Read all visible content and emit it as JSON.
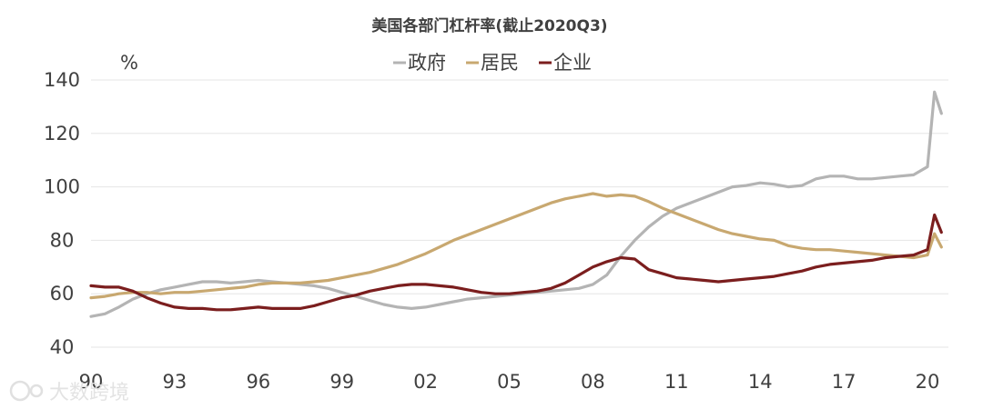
{
  "chart_data": {
    "type": "line",
    "title": "美国各部门杠杆率(截止2020Q3)",
    "unit": "%",
    "ylim": [
      40,
      140
    ],
    "yticks": [
      40,
      60,
      80,
      100,
      120,
      140
    ],
    "xlim": [
      1990,
      2020.75
    ],
    "xticks": [
      {
        "value": 1990,
        "label": "90"
      },
      {
        "value": 1993,
        "label": "93"
      },
      {
        "value": 1996,
        "label": "96"
      },
      {
        "value": 1999,
        "label": "99"
      },
      {
        "value": 2002,
        "label": "02"
      },
      {
        "value": 2005,
        "label": "05"
      },
      {
        "value": 2008,
        "label": "08"
      },
      {
        "value": 2011,
        "label": "11"
      },
      {
        "value": 2014,
        "label": "14"
      },
      {
        "value": 2017,
        "label": "17"
      },
      {
        "value": 2020,
        "label": "20"
      }
    ],
    "grid": "horizontal",
    "legend_position": "top",
    "series": [
      {
        "name": "政府",
        "color": "#b4b4b4",
        "points": [
          [
            1990.0,
            51.5
          ],
          [
            1990.5,
            52.5
          ],
          [
            1991.0,
            55.0
          ],
          [
            1991.5,
            58.0
          ],
          [
            1992.0,
            60.0
          ],
          [
            1992.5,
            61.5
          ],
          [
            1993.0,
            62.5
          ],
          [
            1993.5,
            63.5
          ],
          [
            1994.0,
            64.5
          ],
          [
            1994.5,
            64.5
          ],
          [
            1995.0,
            64.0
          ],
          [
            1995.5,
            64.5
          ],
          [
            1996.0,
            65.0
          ],
          [
            1996.5,
            64.5
          ],
          [
            1997.0,
            64.0
          ],
          [
            1997.5,
            63.5
          ],
          [
            1998.0,
            63.0
          ],
          [
            1998.5,
            62.0
          ],
          [
            1999.0,
            60.5
          ],
          [
            1999.5,
            59.0
          ],
          [
            2000.0,
            57.5
          ],
          [
            2000.5,
            56.0
          ],
          [
            2001.0,
            55.0
          ],
          [
            2001.5,
            54.5
          ],
          [
            2002.0,
            55.0
          ],
          [
            2002.5,
            56.0
          ],
          [
            2003.0,
            57.0
          ],
          [
            2003.5,
            58.0
          ],
          [
            2004.0,
            58.5
          ],
          [
            2004.5,
            59.0
          ],
          [
            2005.0,
            59.5
          ],
          [
            2005.5,
            60.0
          ],
          [
            2006.0,
            60.5
          ],
          [
            2006.5,
            61.0
          ],
          [
            2007.0,
            61.5
          ],
          [
            2007.5,
            62.0
          ],
          [
            2008.0,
            63.5
          ],
          [
            2008.5,
            67.0
          ],
          [
            2009.0,
            74.0
          ],
          [
            2009.5,
            80.0
          ],
          [
            2010.0,
            85.0
          ],
          [
            2010.5,
            89.0
          ],
          [
            2011.0,
            92.0
          ],
          [
            2011.5,
            94.0
          ],
          [
            2012.0,
            96.0
          ],
          [
            2012.5,
            98.0
          ],
          [
            2013.0,
            100.0
          ],
          [
            2013.5,
            100.5
          ],
          [
            2014.0,
            101.5
          ],
          [
            2014.5,
            101.0
          ],
          [
            2015.0,
            100.0
          ],
          [
            2015.5,
            100.5
          ],
          [
            2016.0,
            103.0
          ],
          [
            2016.5,
            104.0
          ],
          [
            2017.0,
            104.0
          ],
          [
            2017.5,
            103.0
          ],
          [
            2018.0,
            103.0
          ],
          [
            2018.5,
            103.5
          ],
          [
            2019.0,
            104.0
          ],
          [
            2019.5,
            104.5
          ],
          [
            2020.0,
            107.5
          ],
          [
            2020.25,
            135.5
          ],
          [
            2020.5,
            127.5
          ]
        ]
      },
      {
        "name": "居民",
        "color": "#c8a870",
        "points": [
          [
            1990.0,
            58.5
          ],
          [
            1990.5,
            59.0
          ],
          [
            1991.0,
            60.0
          ],
          [
            1991.5,
            60.5
          ],
          [
            1992.0,
            60.5
          ],
          [
            1992.5,
            60.0
          ],
          [
            1993.0,
            60.5
          ],
          [
            1993.5,
            60.5
          ],
          [
            1994.0,
            61.0
          ],
          [
            1994.5,
            61.5
          ],
          [
            1995.0,
            62.0
          ],
          [
            1995.5,
            62.5
          ],
          [
            1996.0,
            63.5
          ],
          [
            1996.5,
            64.0
          ],
          [
            1997.0,
            64.0
          ],
          [
            1997.5,
            64.0
          ],
          [
            1998.0,
            64.5
          ],
          [
            1998.5,
            65.0
          ],
          [
            1999.0,
            66.0
          ],
          [
            1999.5,
            67.0
          ],
          [
            2000.0,
            68.0
          ],
          [
            2000.5,
            69.5
          ],
          [
            2001.0,
            71.0
          ],
          [
            2001.5,
            73.0
          ],
          [
            2002.0,
            75.0
          ],
          [
            2002.5,
            77.5
          ],
          [
            2003.0,
            80.0
          ],
          [
            2003.5,
            82.0
          ],
          [
            2004.0,
            84.0
          ],
          [
            2004.5,
            86.0
          ],
          [
            2005.0,
            88.0
          ],
          [
            2005.5,
            90.0
          ],
          [
            2006.0,
            92.0
          ],
          [
            2006.5,
            94.0
          ],
          [
            2007.0,
            95.5
          ],
          [
            2007.5,
            96.5
          ],
          [
            2008.0,
            97.5
          ],
          [
            2008.5,
            96.5
          ],
          [
            2009.0,
            97.0
          ],
          [
            2009.5,
            96.5
          ],
          [
            2010.0,
            94.5
          ],
          [
            2010.5,
            92.0
          ],
          [
            2011.0,
            90.0
          ],
          [
            2011.5,
            88.0
          ],
          [
            2012.0,
            86.0
          ],
          [
            2012.5,
            84.0
          ],
          [
            2013.0,
            82.5
          ],
          [
            2013.5,
            81.5
          ],
          [
            2014.0,
            80.5
          ],
          [
            2014.5,
            80.0
          ],
          [
            2015.0,
            78.0
          ],
          [
            2015.5,
            77.0
          ],
          [
            2016.0,
            76.5
          ],
          [
            2016.5,
            76.5
          ],
          [
            2017.0,
            76.0
          ],
          [
            2017.5,
            75.5
          ],
          [
            2018.0,
            75.0
          ],
          [
            2018.5,
            74.5
          ],
          [
            2019.0,
            74.0
          ],
          [
            2019.5,
            73.5
          ],
          [
            2020.0,
            74.5
          ],
          [
            2020.25,
            82.5
          ],
          [
            2020.5,
            77.5
          ]
        ]
      },
      {
        "name": "企业",
        "color": "#7b1e1e",
        "points": [
          [
            1990.0,
            63.0
          ],
          [
            1990.5,
            62.5
          ],
          [
            1991.0,
            62.5
          ],
          [
            1991.5,
            61.0
          ],
          [
            1992.0,
            58.5
          ],
          [
            1992.5,
            56.5
          ],
          [
            1993.0,
            55.0
          ],
          [
            1993.5,
            54.5
          ],
          [
            1994.0,
            54.5
          ],
          [
            1994.5,
            54.0
          ],
          [
            1995.0,
            54.0
          ],
          [
            1995.5,
            54.5
          ],
          [
            1996.0,
            55.0
          ],
          [
            1996.5,
            54.5
          ],
          [
            1997.0,
            54.5
          ],
          [
            1997.5,
            54.5
          ],
          [
            1998.0,
            55.5
          ],
          [
            1998.5,
            57.0
          ],
          [
            1999.0,
            58.5
          ],
          [
            1999.5,
            59.5
          ],
          [
            2000.0,
            61.0
          ],
          [
            2000.5,
            62.0
          ],
          [
            2001.0,
            63.0
          ],
          [
            2001.5,
            63.5
          ],
          [
            2002.0,
            63.5
          ],
          [
            2002.5,
            63.0
          ],
          [
            2003.0,
            62.5
          ],
          [
            2003.5,
            61.5
          ],
          [
            2004.0,
            60.5
          ],
          [
            2004.5,
            60.0
          ],
          [
            2005.0,
            60.0
          ],
          [
            2005.5,
            60.5
          ],
          [
            2006.0,
            61.0
          ],
          [
            2006.5,
            62.0
          ],
          [
            2007.0,
            64.0
          ],
          [
            2007.5,
            67.0
          ],
          [
            2008.0,
            70.0
          ],
          [
            2008.5,
            72.0
          ],
          [
            2009.0,
            73.5
          ],
          [
            2009.5,
            73.0
          ],
          [
            2010.0,
            69.0
          ],
          [
            2010.5,
            67.5
          ],
          [
            2011.0,
            66.0
          ],
          [
            2011.5,
            65.5
          ],
          [
            2012.0,
            65.0
          ],
          [
            2012.5,
            64.5
          ],
          [
            2013.0,
            65.0
          ],
          [
            2013.5,
            65.5
          ],
          [
            2014.0,
            66.0
          ],
          [
            2014.5,
            66.5
          ],
          [
            2015.0,
            67.5
          ],
          [
            2015.5,
            68.5
          ],
          [
            2016.0,
            70.0
          ],
          [
            2016.5,
            71.0
          ],
          [
            2017.0,
            71.5
          ],
          [
            2017.5,
            72.0
          ],
          [
            2018.0,
            72.5
          ],
          [
            2018.5,
            73.5
          ],
          [
            2019.0,
            74.0
          ],
          [
            2019.5,
            74.5
          ],
          [
            2020.0,
            76.5
          ],
          [
            2020.25,
            89.5
          ],
          [
            2020.5,
            83.0
          ]
        ]
      }
    ]
  },
  "watermark": {
    "text": "大数跨境",
    "icon": "logo-mark-icon"
  }
}
